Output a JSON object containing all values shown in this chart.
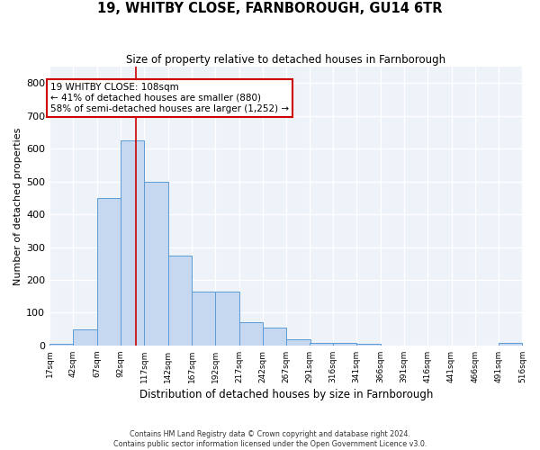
{
  "title": "19, WHITBY CLOSE, FARNBOROUGH, GU14 6TR",
  "subtitle": "Size of property relative to detached houses in Farnborough",
  "xlabel": "Distribution of detached houses by size in Farnborough",
  "ylabel": "Number of detached properties",
  "bin_edges": [
    17,
    42,
    67,
    92,
    117,
    142,
    167,
    192,
    217,
    242,
    267,
    291,
    316,
    341,
    366,
    391,
    416,
    441,
    466,
    491,
    516
  ],
  "bar_heights": [
    5,
    50,
    450,
    625,
    500,
    275,
    165,
    165,
    70,
    55,
    20,
    8,
    8,
    5,
    0,
    0,
    0,
    0,
    0,
    8
  ],
  "bar_color": "#c5d8ef",
  "bar_edge_color": "#5b9bd5",
  "property_size": 108,
  "property_label": "19 WHITBY CLOSE: 108sqm",
  "annotation_line1": "← 41% of detached houses are smaller (880)",
  "annotation_line2": "58% of semi-detached houses are larger (1,252) →",
  "vline_color": "#cc0000",
  "annotation_box_edge": "#cc0000",
  "background_color": "#eef2f9",
  "grid_color": "#ffffff",
  "footer_line1": "Contains HM Land Registry data © Crown copyright and database right 2024.",
  "footer_line2": "Contains public sector information licensed under the Open Government Licence v3.0.",
  "ylim": [
    0,
    850
  ],
  "yticks": [
    0,
    100,
    200,
    300,
    400,
    500,
    600,
    700,
    800
  ]
}
